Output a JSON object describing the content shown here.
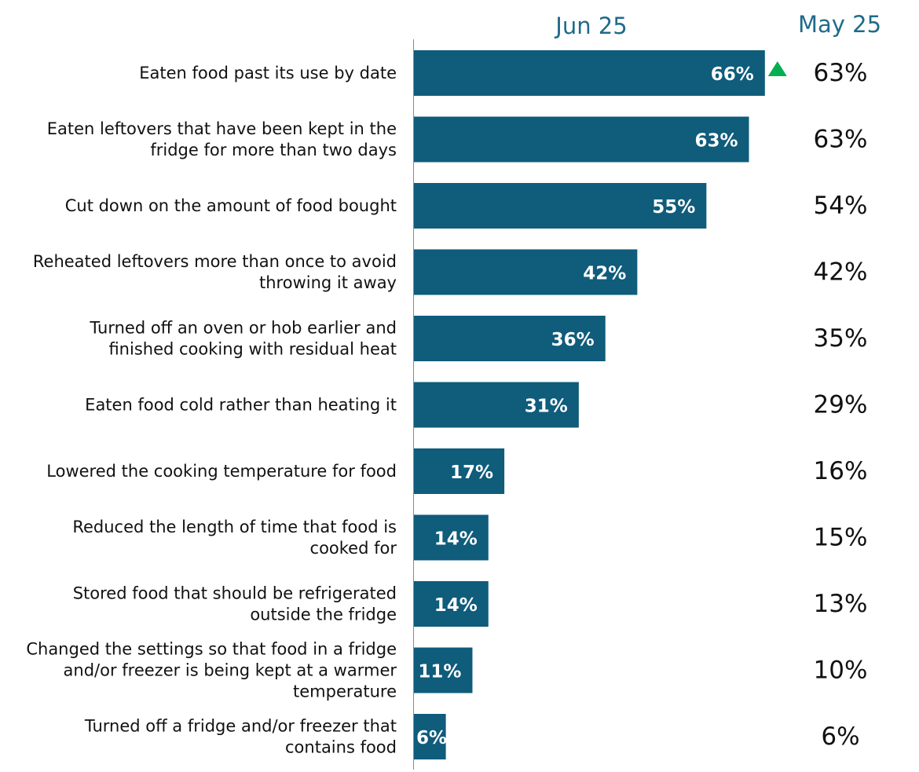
{
  "chart_data": {
    "type": "bar",
    "orientation": "horizontal",
    "series": [
      {
        "name": "Jun 25",
        "values": [
          66,
          63,
          55,
          42,
          36,
          31,
          17,
          14,
          14,
          11,
          6
        ],
        "value_labels": [
          "66%",
          "63%",
          "55%",
          "42%",
          "36%",
          "31%",
          "17%",
          "14%",
          "14%",
          "11%",
          "6%"
        ]
      },
      {
        "name": "May 25",
        "values": [
          63,
          63,
          54,
          42,
          35,
          29,
          16,
          15,
          13,
          10,
          6
        ],
        "value_labels": [
          "63%",
          "63%",
          "54%",
          "42%",
          "35%",
          "29%",
          "16%",
          "15%",
          "13%",
          "10%",
          "6%"
        ]
      }
    ],
    "categories": [
      [
        "Eaten food past its use by date"
      ],
      [
        "Eaten leftovers that have been kept in the",
        "fridge for more than two days"
      ],
      [
        "Cut down on the amount of food bought"
      ],
      [
        "Reheated leftovers more than once to avoid",
        "throwing it away"
      ],
      [
        "Turned off an oven or hob earlier and",
        "finished cooking with residual heat"
      ],
      [
        "Eaten food cold rather than heating it"
      ],
      [
        "Lowered the cooking temperature for food"
      ],
      [
        "Reduced the length of time that food is",
        "cooked for"
      ],
      [
        "Stored food that should be refrigerated",
        "outside the fridge"
      ],
      [
        "Changed the settings so that food in a fridge",
        "and/or freezer is being kept at a warmer",
        "temperature"
      ],
      [
        "Turned off a fridge and/or freezer that",
        "contains food"
      ]
    ],
    "significant_increase": [
      true,
      false,
      false,
      false,
      false,
      false,
      false,
      false,
      false,
      false,
      false
    ],
    "xlim": [
      0,
      100
    ],
    "title": "",
    "xlabel": "",
    "ylabel": "",
    "grid": false,
    "legend": "none"
  },
  "colors": {
    "bar": "#0f5c7b",
    "header": "#1f6b89",
    "increase_marker": "#00b050",
    "axis": "#8a8a8a",
    "text": "#111111"
  }
}
